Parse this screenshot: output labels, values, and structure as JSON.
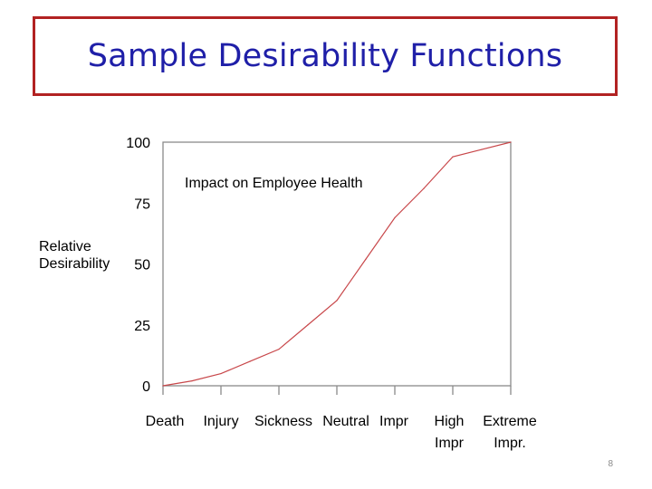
{
  "slide": {
    "title": "Sample Desirability Functions",
    "page_number": "8"
  },
  "chart_data": {
    "type": "line",
    "annotation": "Impact on Employee Health",
    "ylabel_lines": [
      "Relative",
      "Desirability"
    ],
    "ylim": [
      0,
      100
    ],
    "yticks": [
      0,
      25,
      50,
      75,
      100
    ],
    "ytick_labels": [
      "0",
      "25",
      "50",
      "75",
      "100"
    ],
    "categories": [
      {
        "line1": "Death",
        "line2": ""
      },
      {
        "line1": "Injury",
        "line2": ""
      },
      {
        "line1": "Sickness",
        "line2": ""
      },
      {
        "line1": "Neutral",
        "line2": ""
      },
      {
        "line1": "Impr",
        "line2": ""
      },
      {
        "line1": "High",
        "line2": "Impr"
      },
      {
        "line1": "Extreme",
        "line2": "Impr."
      }
    ],
    "series": [
      {
        "x": [
          0,
          0.5,
          1,
          1.5,
          2,
          2.5,
          3,
          3.5,
          4,
          4.5,
          5,
          5.5,
          6
        ],
        "values": [
          0,
          2,
          5,
          10,
          15,
          25,
          35,
          52,
          69,
          81,
          94,
          97,
          100
        ],
        "color": "#c8474a"
      }
    ],
    "grid": false,
    "colors": {
      "axis": "#8a8a8a",
      "line": "#c8474a"
    }
  }
}
